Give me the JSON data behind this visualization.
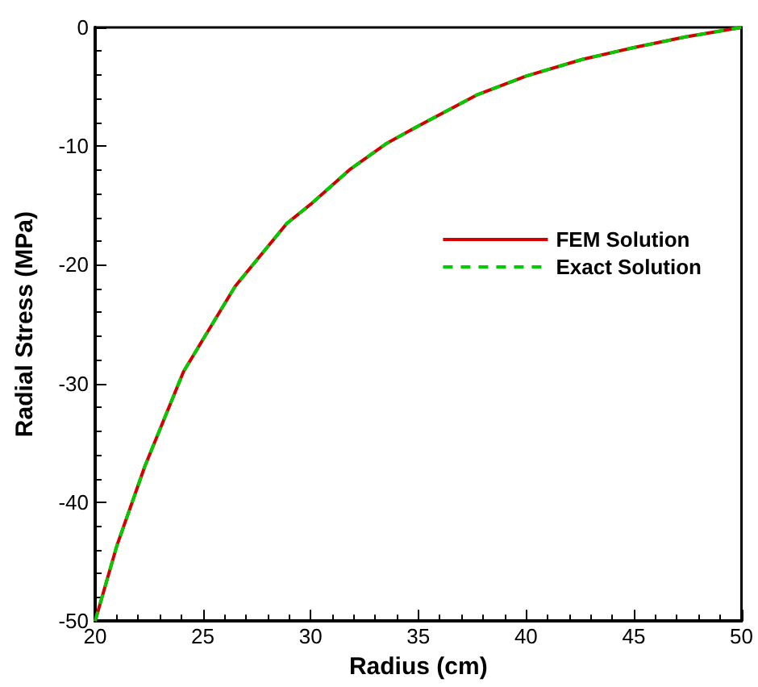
{
  "chart_data": {
    "type": "line",
    "xlabel": "Radius (cm)",
    "ylabel": "Radial Stress (MPa)",
    "x": [
      20,
      21,
      22.3,
      24.1,
      26.5,
      28.9,
      30,
      31.8,
      33.5,
      35,
      37.7,
      40,
      42.6,
      45,
      47.4,
      50
    ],
    "series": [
      {
        "name": "FEM Solution",
        "color": "#d40000",
        "line_style": "solid",
        "values": [
          -50,
          -43.7,
          -37,
          -29,
          -21.8,
          -16.5,
          -14.9,
          -12,
          -9.8,
          -8.3,
          -5.7,
          -4.1,
          -2.7,
          -1.7,
          -0.8,
          0
        ]
      },
      {
        "name": "Exact Solution",
        "color": "#00cc00",
        "line_style": "dashed",
        "values": [
          -50,
          -43.7,
          -37,
          -29,
          -21.8,
          -16.5,
          -14.9,
          -12,
          -9.8,
          -8.3,
          -5.7,
          -4.1,
          -2.7,
          -1.7,
          -0.8,
          0
        ]
      }
    ],
    "xlim": [
      20,
      50
    ],
    "xticks": [
      20,
      25,
      30,
      35,
      40,
      45,
      50
    ],
    "ylim": [
      -50,
      0
    ],
    "yticks": [
      -50,
      -40,
      -30,
      -20,
      -10,
      0
    ],
    "grid": false,
    "legend": "right",
    "marker": "none"
  }
}
